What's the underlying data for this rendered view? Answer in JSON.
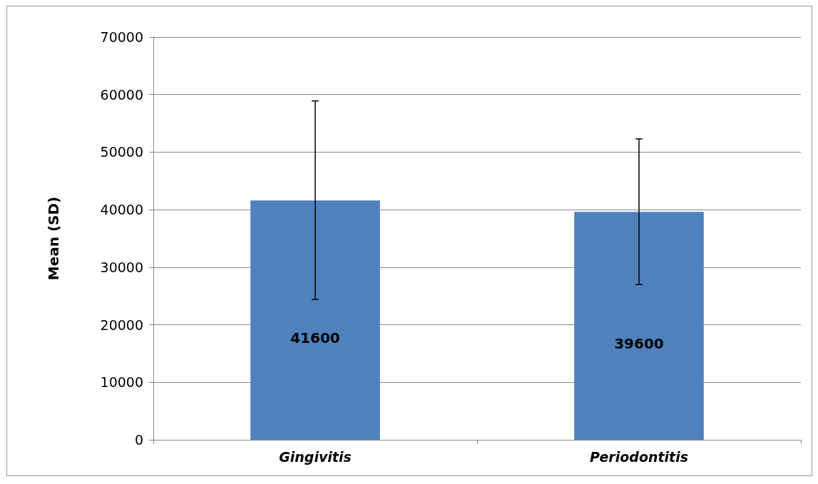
{
  "chart_data": {
    "type": "bar",
    "ylabel": "Mean (SD)",
    "categories": [
      "Gingivitis",
      "Periodontitis"
    ],
    "values": [
      41600,
      39600
    ],
    "color": "#4f81bd",
    "errors": [
      [
        24400,
        58900
      ],
      [
        27000,
        52300
      ]
    ],
    "data_labels": true,
    "ylim": [
      0,
      70000
    ],
    "yticks": [
      0,
      10000,
      20000,
      30000,
      40000,
      50000,
      60000,
      70000
    ],
    "grid": "y"
  }
}
